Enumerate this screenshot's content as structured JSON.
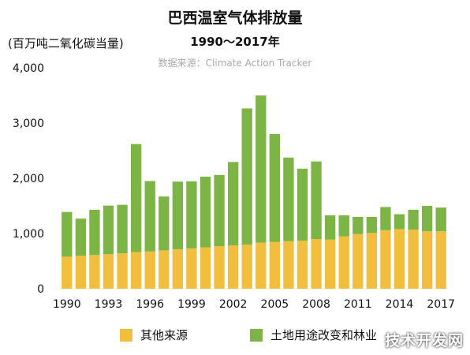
{
  "chart_data": {
    "type": "bar",
    "stacked": true,
    "title": "巴西温室气体排放量",
    "subtitle": "1990～2017年",
    "source": "数据来源：Climate Action Tracker",
    "ylabel": "(百万吨二氧化碳当量)",
    "ylim": [
      0,
      4000
    ],
    "yticks": [
      "0",
      "1,000",
      "2,000",
      "3,000",
      "4,000"
    ],
    "ytick_values": [
      0,
      1000,
      2000,
      3000,
      4000
    ],
    "xtick_labels": [
      "1990",
      "1993",
      "1996",
      "1999",
      "2002",
      "2005",
      "2008",
      "2011",
      "2014",
      "2017"
    ],
    "categories": [
      "1990",
      "1991",
      "1992",
      "1993",
      "1994",
      "1995",
      "1996",
      "1997",
      "1998",
      "1999",
      "2000",
      "2001",
      "2002",
      "2003",
      "2004",
      "2005",
      "2006",
      "2007",
      "2008",
      "2009",
      "2010",
      "2011",
      "2012",
      "2013",
      "2014",
      "2015",
      "2016",
      "2017"
    ],
    "series": [
      {
        "name": "其他来源",
        "color": "#f2be3d",
        "values": [
          580,
          600,
          610,
          625,
          640,
          665,
          675,
          695,
          715,
          730,
          750,
          770,
          785,
          800,
          835,
          850,
          860,
          870,
          900,
          890,
          950,
          990,
          1010,
          1060,
          1080,
          1070,
          1040,
          1040
        ]
      },
      {
        "name": "土地用途改变和林业",
        "color": "#7db446",
        "values": [
          810,
          670,
          820,
          880,
          880,
          1955,
          1275,
          975,
          1225,
          1215,
          1280,
          1290,
          1510,
          2465,
          2665,
          1950,
          1515,
          1305,
          1405,
          440,
          380,
          310,
          290,
          420,
          270,
          360,
          460,
          430
        ]
      }
    ],
    "grid": false,
    "legend_position": "bottom"
  },
  "watermark": "技术开发网"
}
